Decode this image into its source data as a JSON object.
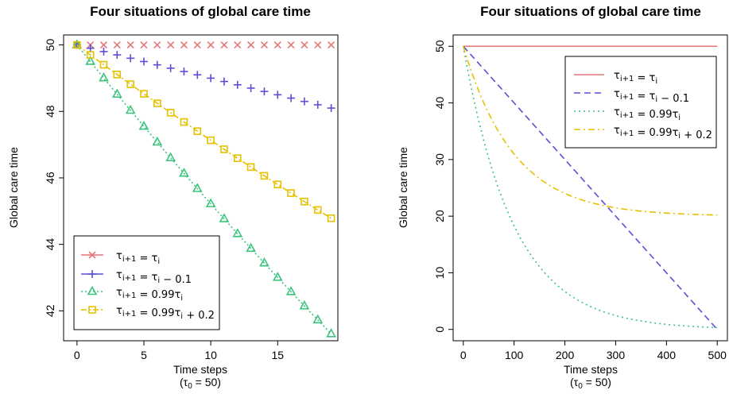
{
  "colors": {
    "s1": "#E5777A",
    "s2": "#5B4FD6",
    "s3": "#3CC47E",
    "s4": "#E6C100"
  },
  "chart_data": [
    {
      "type": "line",
      "title": "Four situations of global care time",
      "xlabel": "Time steps",
      "xlabel_line2": "(τ0 = 50)",
      "ylabel": "Global care time",
      "xlim": [
        -1,
        19.5
      ],
      "ylim": [
        41.1,
        50.3
      ],
      "xticks": [
        0,
        5,
        10,
        15
      ],
      "yticks": [
        42,
        44,
        46,
        48,
        50
      ],
      "legend_position": "bottom-left",
      "x": [
        0,
        1,
        2,
        3,
        4,
        5,
        6,
        7,
        8,
        9,
        10,
        11,
        12,
        13,
        14,
        15,
        16,
        17,
        18,
        19
      ],
      "series": [
        {
          "name": "τi+1 = τi",
          "marker": "x",
          "dash": "",
          "values": [
            50,
            50,
            50,
            50,
            50,
            50,
            50,
            50,
            50,
            50,
            50,
            50,
            50,
            50,
            50,
            50,
            50,
            50,
            50,
            50
          ]
        },
        {
          "name": "τi+1 = τi − 0.1",
          "marker": "plus",
          "dash": "",
          "values": [
            50,
            49.9,
            49.8,
            49.7,
            49.6,
            49.5,
            49.4,
            49.3,
            49.2,
            49.1,
            49.0,
            48.9,
            48.8,
            48.7,
            48.6,
            48.5,
            48.4,
            48.3,
            48.2,
            48.1
          ]
        },
        {
          "name": "τi+1 = 0.99τi",
          "marker": "triangle",
          "dash": "2,3",
          "values": [
            50,
            49.5,
            49.005,
            48.515,
            48.03,
            47.55,
            47.074,
            46.603,
            46.137,
            45.676,
            45.219,
            44.767,
            44.319,
            43.876,
            43.437,
            43.003,
            42.573,
            42.147,
            41.726,
            41.308
          ]
        },
        {
          "name": "τi+1 = 0.99τi + 0.2",
          "marker": "square",
          "dash": "7,3,2,3",
          "values": [
            50,
            49.7,
            49.403,
            49.109,
            48.818,
            48.53,
            48.244,
            47.962,
            47.682,
            47.405,
            47.131,
            46.86,
            46.591,
            46.325,
            46.062,
            45.801,
            45.543,
            45.288,
            45.035,
            44.785
          ]
        }
      ]
    },
    {
      "type": "line",
      "title": "Four situations of global care time",
      "xlabel": "Time steps",
      "xlabel_line2": "(τ0 = 50)",
      "ylabel": "Global care time",
      "xlim": [
        -20,
        520
      ],
      "ylim": [
        -2,
        52
      ],
      "xticks": [
        0,
        100,
        200,
        300,
        400,
        500
      ],
      "yticks": [
        0,
        10,
        20,
        30,
        40,
        50
      ],
      "legend_position": "top-right",
      "series": [
        {
          "name": "τi+1 = τi",
          "dash": "",
          "formula": "constant"
        },
        {
          "name": "τi+1 = τi − 0.1",
          "dash": "8,5",
          "formula": "linear"
        },
        {
          "name": "τi+1 = 0.99τi",
          "dash": "2,4",
          "formula": "geometric"
        },
        {
          "name": "τi+1 = 0.99τi + 0.2",
          "dash": "8,4,2,4",
          "formula": "affine"
        }
      ]
    }
  ]
}
